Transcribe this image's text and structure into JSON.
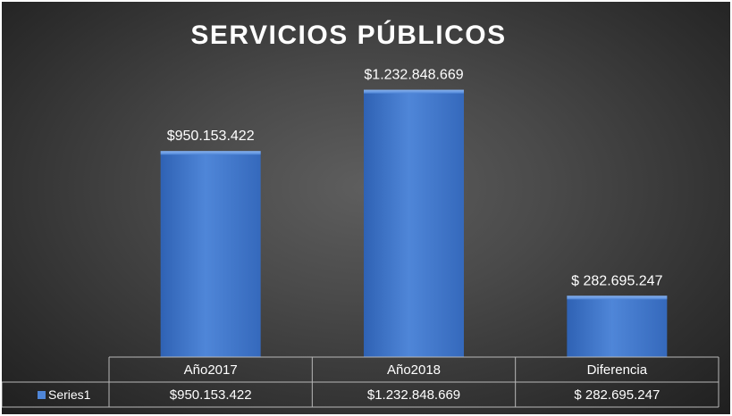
{
  "chart_data": {
    "type": "bar",
    "title": "SERVICIOS PÚBLICOS",
    "categories": [
      "Año2017",
      "Año2018",
      "Diferencia"
    ],
    "series": [
      {
        "name": "Series1",
        "values": [
          950153422,
          1232848669,
          282695247
        ],
        "labels": [
          "$950.153.422",
          "$1.232.848.669",
          "$ 282.695.247"
        ]
      }
    ],
    "ylim": [
      0,
      1400000000
    ],
    "grid": false,
    "legend": "data table (bottom-left)",
    "colors": {
      "bar": "#4a7fd0",
      "bar_light": "#6e9fe6",
      "bar_dark": "#2e5fae",
      "background": "#3c3c3c",
      "table_line": "#b8b8b8"
    }
  }
}
